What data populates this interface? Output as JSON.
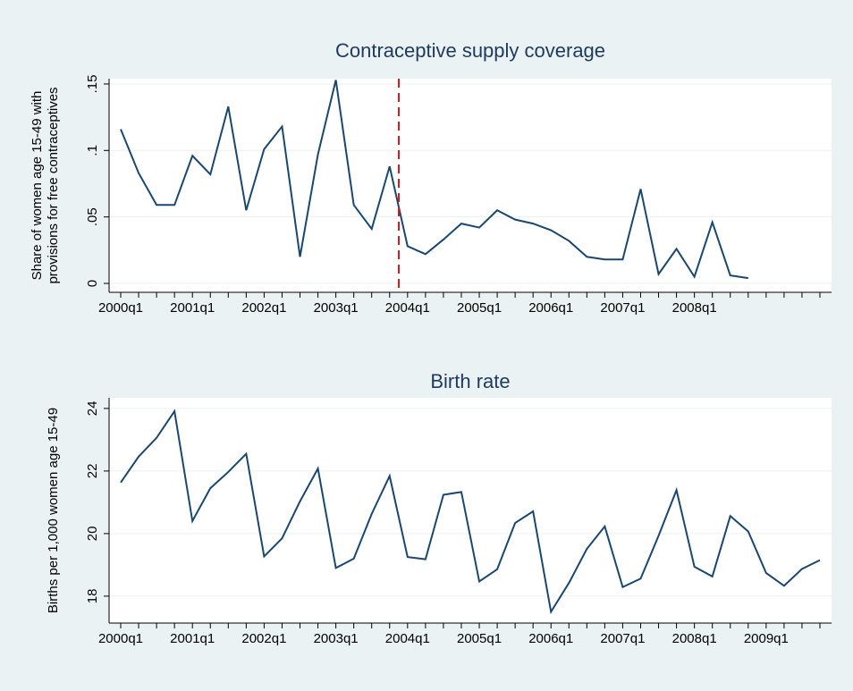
{
  "chart_data": [
    {
      "type": "line",
      "title": "Contraceptive supply coverage",
      "y_label": [
        "Share of women age 15-49 with",
        "provisions for free contraceptives"
      ],
      "categories": [
        "2000q1",
        null,
        null,
        null,
        "2001q1",
        null,
        null,
        null,
        "2002q1",
        null,
        null,
        null,
        "2003q1",
        null,
        null,
        null,
        "2004q1",
        null,
        null,
        null,
        "2005q1",
        null,
        null,
        null,
        "2006q1",
        null,
        null,
        null,
        "2007q1",
        null,
        null,
        null,
        "2008q1",
        null,
        null,
        null,
        null,
        null,
        null,
        null
      ],
      "values": [
        0.116,
        0.083,
        0.059,
        0.059,
        0.096,
        0.082,
        0.133,
        0.055,
        0.101,
        0.118,
        0.02,
        0.097,
        0.153,
        0.059,
        0.041,
        0.088,
        0.028,
        0.022,
        0.033,
        0.045,
        0.042,
        0.055,
        0.048,
        0.045,
        0.04,
        0.032,
        0.02,
        0.018,
        0.018,
        0.071,
        0.007,
        0.026,
        0.005,
        0.046,
        0.006,
        0.004,
        null,
        null,
        null,
        null
      ],
      "color": "#1a476f",
      "ylim": [
        -0.0067,
        0.154
      ],
      "yticks": [
        0,
        {
          "value": 0.05,
          "label": ".05"
        },
        {
          "value": 0.1,
          "label": ".1"
        },
        {
          "value": 0.15,
          "label": ".15"
        }
      ],
      "grid": true
    },
    {
      "type": "line",
      "title": "Birth rate",
      "y_label": [
        "Births per 1,000 women age 15-49"
      ],
      "categories": [
        "2000q1",
        null,
        null,
        null,
        "2001q1",
        null,
        null,
        null,
        "2002q1",
        null,
        null,
        null,
        "2003q1",
        null,
        null,
        null,
        "2004q1",
        null,
        null,
        null,
        "2005q1",
        null,
        null,
        null,
        "2006q1",
        null,
        null,
        null,
        "2007q1",
        null,
        null,
        null,
        "2008q1",
        null,
        null,
        null,
        "2009q1",
        null,
        null,
        null
      ],
      "values": [
        21.63,
        22.46,
        23.06,
        23.91,
        20.4,
        21.45,
        21.97,
        22.55,
        19.27,
        19.85,
        21.03,
        22.08,
        18.9,
        19.2,
        20.63,
        21.84,
        19.25,
        19.18,
        21.24,
        21.33,
        18.47,
        18.86,
        20.34,
        20.71,
        17.5,
        18.42,
        19.51,
        20.23,
        18.29,
        18.56,
        19.93,
        21.39,
        18.94,
        18.63,
        20.56,
        20.07,
        18.74,
        18.33,
        18.87,
        19.15
      ],
      "color": "#1a476f",
      "ylim": [
        17.14,
        24.34
      ],
      "yticks": [
        18,
        20,
        22,
        24
      ],
      "grid": true
    }
  ]
}
